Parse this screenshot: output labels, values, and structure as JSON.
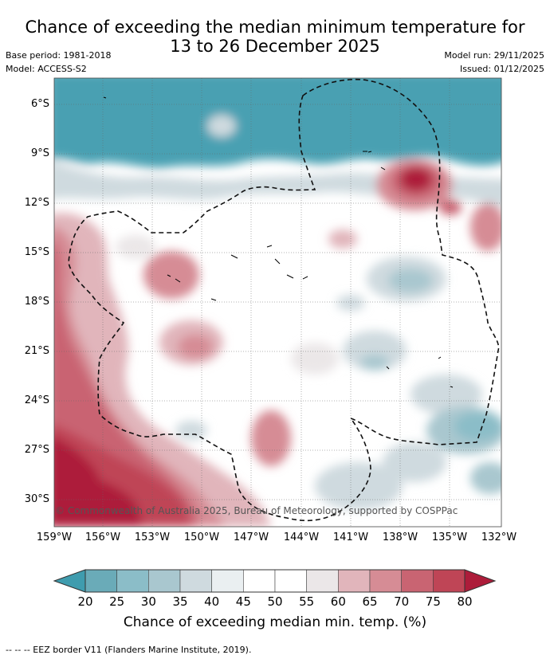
{
  "title": {
    "line1": "Chance of exceeding the median minimum temperature for",
    "line2": "13 to 26 December 2025"
  },
  "meta": {
    "base_period": "Base period: 1981-2018",
    "model": "Model: ACCESS-S2",
    "model_run": "Model run: 29/11/2025",
    "issued": "Issued: 01/12/2025"
  },
  "axes": {
    "lat_labels": [
      "6°S",
      "9°S",
      "12°S",
      "15°S",
      "18°S",
      "21°S",
      "24°S",
      "27°S",
      "30°S"
    ],
    "lon_labels": [
      "159°W",
      "156°W",
      "153°W",
      "150°W",
      "147°W",
      "144°W",
      "141°W",
      "138°W",
      "135°W",
      "132°W"
    ]
  },
  "copyright": "© Commonwealth of Australia 2025, Bureau of Meteorology, supported by COSPPac",
  "colorbar": {
    "title": "Chance of exceeding median min. temp. (%)",
    "ticks": [
      "20",
      "25",
      "30",
      "35",
      "40",
      "45",
      "50",
      "55",
      "60",
      "65",
      "70",
      "75",
      "80"
    ],
    "colors": [
      "#6aabb8",
      "#8bbdc8",
      "#a9c7cf",
      "#cfdadf",
      "#eaeff1",
      "#ffffff",
      "#ffffff",
      "#ebe7e8",
      "#e1b5bb",
      "#d68c95",
      "#c96472",
      "#bf4556"
    ],
    "low_color": "#3f9cae",
    "high_color": "#ad1c3a"
  },
  "footnote": "--  --  -- EEZ border V11 (Flanders Marine Institute, 2019)."
}
